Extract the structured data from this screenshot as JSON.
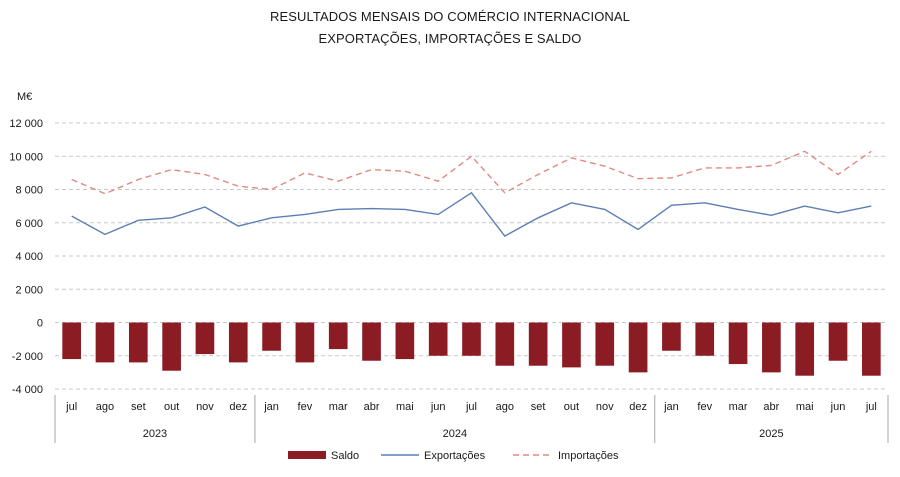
{
  "chart_data": {
    "type": "bar+line",
    "title": "RESULTADOS MENSAIS DO COMÉRCIO INTERNACIONAL",
    "subtitle": "EXPORTAÇÕES, IMPORTAÇÕES E SALDO",
    "unit_label": "M€",
    "ylim": [
      -4000,
      12000
    ],
    "y_ticks": [
      12000,
      10000,
      8000,
      6000,
      4000,
      2000,
      0,
      -2000,
      -4000
    ],
    "y_tick_labels": [
      "12 000",
      "10 000",
      "8 000",
      "6 000",
      "4 000",
      "2 000",
      "0",
      "-2 000",
      "-4 000"
    ],
    "grid": true,
    "legend_position": "bottom",
    "categories": [
      "jul",
      "ago",
      "set",
      "out",
      "nov",
      "dez",
      "jan",
      "fev",
      "mar",
      "abr",
      "mai",
      "jun",
      "jul",
      "ago",
      "set",
      "out",
      "nov",
      "dez",
      "jan",
      "fev",
      "mar",
      "abr",
      "mai",
      "jun",
      "jul"
    ],
    "year_groups": [
      {
        "label": "2023",
        "count": 6
      },
      {
        "label": "2024",
        "count": 12
      },
      {
        "label": "2025",
        "count": 7
      }
    ],
    "series": [
      {
        "name": "Saldo",
        "type": "bar",
        "color": "#8b1c24",
        "values": [
          -2200,
          -2400,
          -2400,
          -2900,
          -1900,
          -2400,
          -1700,
          -2400,
          -1600,
          -2300,
          -2200,
          -2000,
          -2000,
          -2600,
          -2600,
          -2700,
          -2600,
          -3000,
          -1700,
          -2000,
          -2500,
          -3000,
          -3200,
          -2300,
          -3200
        ]
      },
      {
        "name": "Exportações",
        "type": "line",
        "color": "#5b7fb5",
        "values": [
          6400,
          5300,
          6150,
          6300,
          6950,
          5800,
          6300,
          6500,
          6800,
          6850,
          6800,
          6500,
          7800,
          5200,
          6300,
          7200,
          6800,
          5600,
          7050,
          7200,
          6800,
          6450,
          7000,
          6600,
          7000
        ]
      },
      {
        "name": "Importações",
        "type": "line",
        "dashed": true,
        "color": "#e08a82",
        "values": [
          8600,
          7750,
          8600,
          9200,
          8900,
          8200,
          8000,
          9000,
          8500,
          9200,
          9100,
          8500,
          10000,
          7800,
          8900,
          9900,
          9400,
          8650,
          8700,
          9300,
          9300,
          9450,
          10300,
          8900,
          10300
        ]
      }
    ]
  }
}
